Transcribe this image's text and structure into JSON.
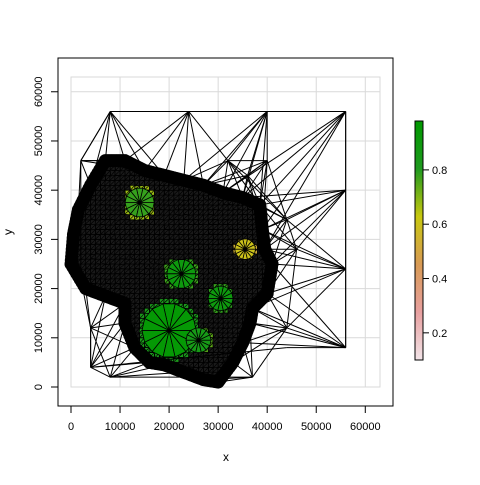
{
  "chart_data": {
    "type": "mesh",
    "xlabel": "x",
    "ylabel": "y",
    "xlim": [
      -3000,
      64500
    ],
    "ylim": [
      -3000,
      65000
    ],
    "x_ticks": [
      0,
      10000,
      20000,
      30000,
      40000,
      50000,
      60000
    ],
    "y_ticks": [
      0,
      10000,
      20000,
      30000,
      40000,
      50000,
      60000
    ],
    "x_tick_labels": [
      "0",
      "10000",
      "20000",
      "30000",
      "40000",
      "50000",
      "60000"
    ],
    "y_tick_labels": [
      "0",
      "10000",
      "20000",
      "30000",
      "40000",
      "50000",
      "60000"
    ],
    "grid": true,
    "bounding_box": {
      "x": [
        0,
        56000
      ],
      "y": [
        0,
        56000
      ]
    },
    "outer_nodes": [
      [
        8000,
        56000
      ],
      [
        24000,
        56000
      ],
      [
        40000,
        56000
      ],
      [
        56000,
        56000
      ],
      [
        56000,
        40000
      ],
      [
        56000,
        24000
      ],
      [
        56000,
        8000
      ],
      [
        44000,
        12000
      ],
      [
        37000,
        2000
      ],
      [
        24000,
        2000
      ],
      [
        8000,
        2000
      ],
      [
        4000,
        4000
      ],
      [
        4000,
        12000
      ],
      [
        2000,
        22000
      ],
      [
        2000,
        36000
      ],
      [
        2000,
        46000
      ],
      [
        32000,
        46000
      ],
      [
        36000,
        43000
      ],
      [
        44000,
        34000
      ],
      [
        46000,
        28000
      ],
      [
        40000,
        46000
      ]
    ],
    "colorbar": {
      "ticks": [
        0.2,
        0.4,
        0.6,
        0.8
      ],
      "tick_labels": [
        "0.2",
        "0.4",
        "0.6",
        "0.8"
      ],
      "range": [
        0.1,
        0.98
      ],
      "colors": [
        "#f2e4e8",
        "#e8a0a0",
        "#d89a54",
        "#c8c810",
        "#1f9a1f",
        "#009900"
      ]
    },
    "regions": [
      {
        "cx": 20000,
        "cy": 11500,
        "r": 6500,
        "value": 0.95
      },
      {
        "cx": 22500,
        "cy": 23000,
        "r": 3500,
        "value": 0.9
      },
      {
        "cx": 30500,
        "cy": 18000,
        "r": 3000,
        "value": 0.9
      },
      {
        "cx": 14000,
        "cy": 37500,
        "r": 3500,
        "value": 0.78
      },
      {
        "cx": 26000,
        "cy": 9500,
        "r": 3000,
        "value": 0.85
      },
      {
        "cx": 35500,
        "cy": 28000,
        "r": 2500,
        "value": 0.6
      }
    ]
  }
}
